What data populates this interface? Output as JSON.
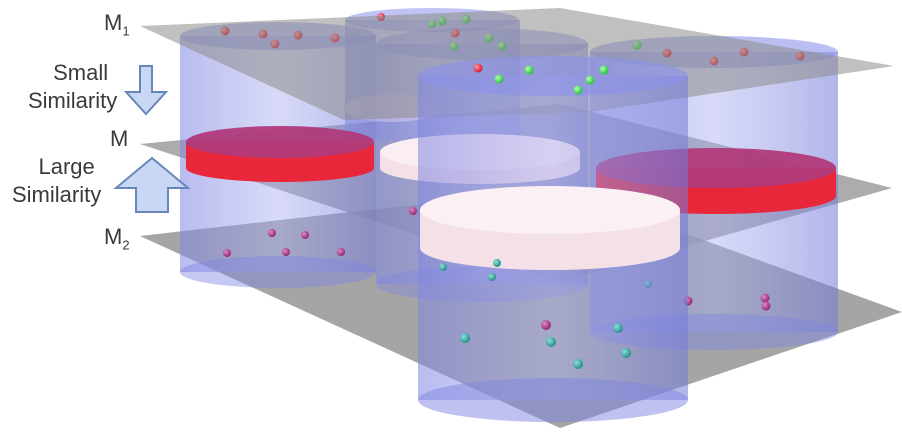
{
  "labels": {
    "m1": "M",
    "m1_sub": "1",
    "small_similarity_line1": "Small",
    "small_similarity_line2": "Similarity",
    "m": "M",
    "large_similarity_line1": "Large",
    "large_similarity_line2": "Similarity",
    "m2": "M",
    "m2_sub": "2"
  },
  "icons": {
    "down_arrow": "small-down-arrow-icon",
    "up_arrow": "large-up-arrow-icon"
  },
  "colors": {
    "plane": "#8c8c8c",
    "cylinder": "#8a8fe8",
    "cylinder_edge": "#5c63c4",
    "red_disc": "#e8283a",
    "red_disc_top": "#b03a7a",
    "pink_disc": "#f4e1e8",
    "dot_red": "#e0203a",
    "dot_green": "#2fd24a",
    "dot_teal": "#2aa8a0",
    "dot_purple": "#a03a80",
    "arrow_fill": "#c8d8f4",
    "arrow_stroke": "#6a86b8",
    "text": "#3a3a3a"
  }
}
